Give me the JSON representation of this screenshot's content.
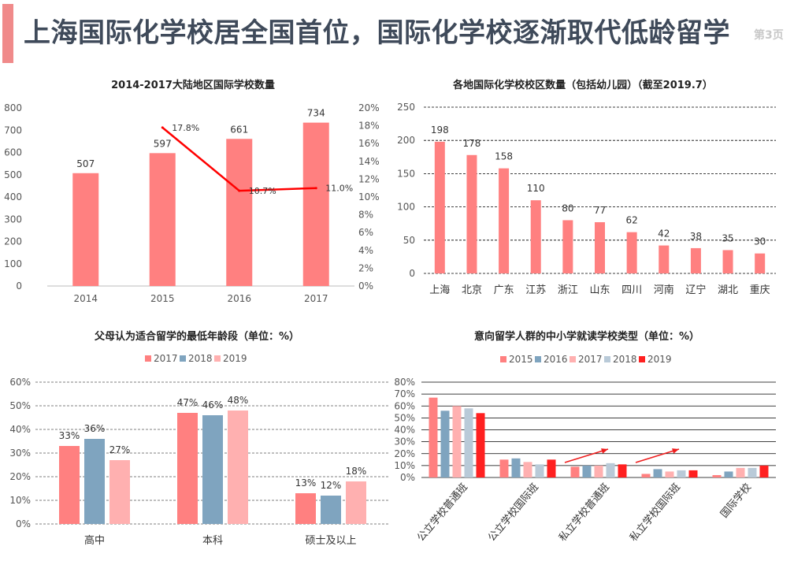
{
  "page": {
    "title": "上海国际化学校居全国首位，国际化学校逐渐取代低龄留学",
    "page_number": "第3页"
  },
  "colors": {
    "accent": "#f08a8a",
    "title": "#3f4a5a"
  },
  "chart_data": [
    {
      "id": "c1",
      "type": "bar",
      "title": "2014-2017大陆地区国际学校数量",
      "categories": [
        "2014",
        "2015",
        "2016",
        "2017"
      ],
      "series": [
        {
          "values": [
            507,
            597,
            661,
            734
          ],
          "value_labels": [
            "507",
            "597",
            "661",
            "734"
          ],
          "color": "#ff8080",
          "kind": "bar"
        },
        {
          "values": [
            null,
            17.8,
            10.7,
            11.0
          ],
          "value_labels": [
            "",
            "17.8%",
            "10.7%",
            "11.0%"
          ],
          "color": "#ff0000",
          "kind": "line",
          "axis": "right"
        }
      ],
      "ylim": [
        0,
        800
      ],
      "yticks": [
        "0",
        "100",
        "200",
        "300",
        "400",
        "500",
        "600",
        "700",
        "800"
      ],
      "y2lim": [
        0,
        20
      ],
      "y2ticks": [
        "0%",
        "2%",
        "4%",
        "6%",
        "8%",
        "10%",
        "12%",
        "14%",
        "16%",
        "18%",
        "20%"
      ],
      "grid": false
    },
    {
      "id": "c2",
      "type": "bar",
      "title": "各地国际化学校校区数量（包括幼儿园）（截至2019.7）",
      "categories": [
        "上海",
        "北京",
        "广东",
        "江苏",
        "浙江",
        "山东",
        "四川",
        "河南",
        "辽宁",
        "湖北",
        "重庆"
      ],
      "series": [
        {
          "values": [
            198,
            178,
            158,
            110,
            80,
            77,
            62,
            42,
            38,
            35,
            30
          ],
          "value_labels": [
            "198",
            "178",
            "158",
            "110",
            "80",
            "77",
            "62",
            "42",
            "38",
            "35",
            "30"
          ],
          "color": "#ff8080"
        }
      ],
      "ylim": [
        0,
        250
      ],
      "yticks": [
        "0",
        "50",
        "100",
        "150",
        "200",
        "250"
      ],
      "grid": true
    },
    {
      "id": "c3",
      "type": "bar",
      "title": "父母认为适合留学的最低年龄段（单位：%）",
      "categories": [
        "高中",
        "本科",
        "硕士及以上"
      ],
      "series": [
        {
          "name": "2017",
          "values": [
            33,
            47,
            13
          ],
          "value_labels": [
            "33%",
            "47%",
            "13%"
          ],
          "color": "#ff8080"
        },
        {
          "name": "2018",
          "values": [
            36,
            46,
            12
          ],
          "value_labels": [
            "36%",
            "46%",
            "12%"
          ],
          "color": "#7fa4bf"
        },
        {
          "name": "2019",
          "values": [
            27,
            48,
            18
          ],
          "value_labels": [
            "27%",
            "48%",
            "18%"
          ],
          "color": "#ffb0b0"
        }
      ],
      "ylim": [
        0,
        60
      ],
      "yticks": [
        "0%",
        "10%",
        "20%",
        "30%",
        "40%",
        "50%",
        "60%"
      ],
      "grid": true,
      "legend": "top"
    },
    {
      "id": "c4",
      "type": "bar",
      "title": "意向留学人群的中小学就读学校类型（单位：%）",
      "categories": [
        "公立学校普通班",
        "公立学校国际班",
        "私立学校普通班",
        "私立学校国际班",
        "国际学校"
      ],
      "series": [
        {
          "name": "2015",
          "values": [
            67,
            15,
            9,
            3,
            2
          ],
          "color": "#ff8080"
        },
        {
          "name": "2016",
          "values": [
            56,
            16,
            10,
            7,
            5
          ],
          "color": "#7fa4bf"
        },
        {
          "name": "2017",
          "values": [
            60,
            13,
            10,
            5,
            8
          ],
          "color": "#ffb0b0"
        },
        {
          "name": "2018",
          "values": [
            58,
            11,
            12,
            6,
            8
          ],
          "color": "#b9cad8"
        },
        {
          "name": "2019",
          "values": [
            54,
            15,
            11,
            6,
            10
          ],
          "color": "#ff2020"
        }
      ],
      "ylim": [
        0,
        80
      ],
      "yticks": [
        "0%",
        "10%",
        "20%",
        "30%",
        "40%",
        "50%",
        "60%",
        "70%",
        "80%"
      ],
      "grid": true,
      "legend": "top",
      "annotations": [
        "increase-arrow",
        "increase-arrow"
      ]
    }
  ]
}
